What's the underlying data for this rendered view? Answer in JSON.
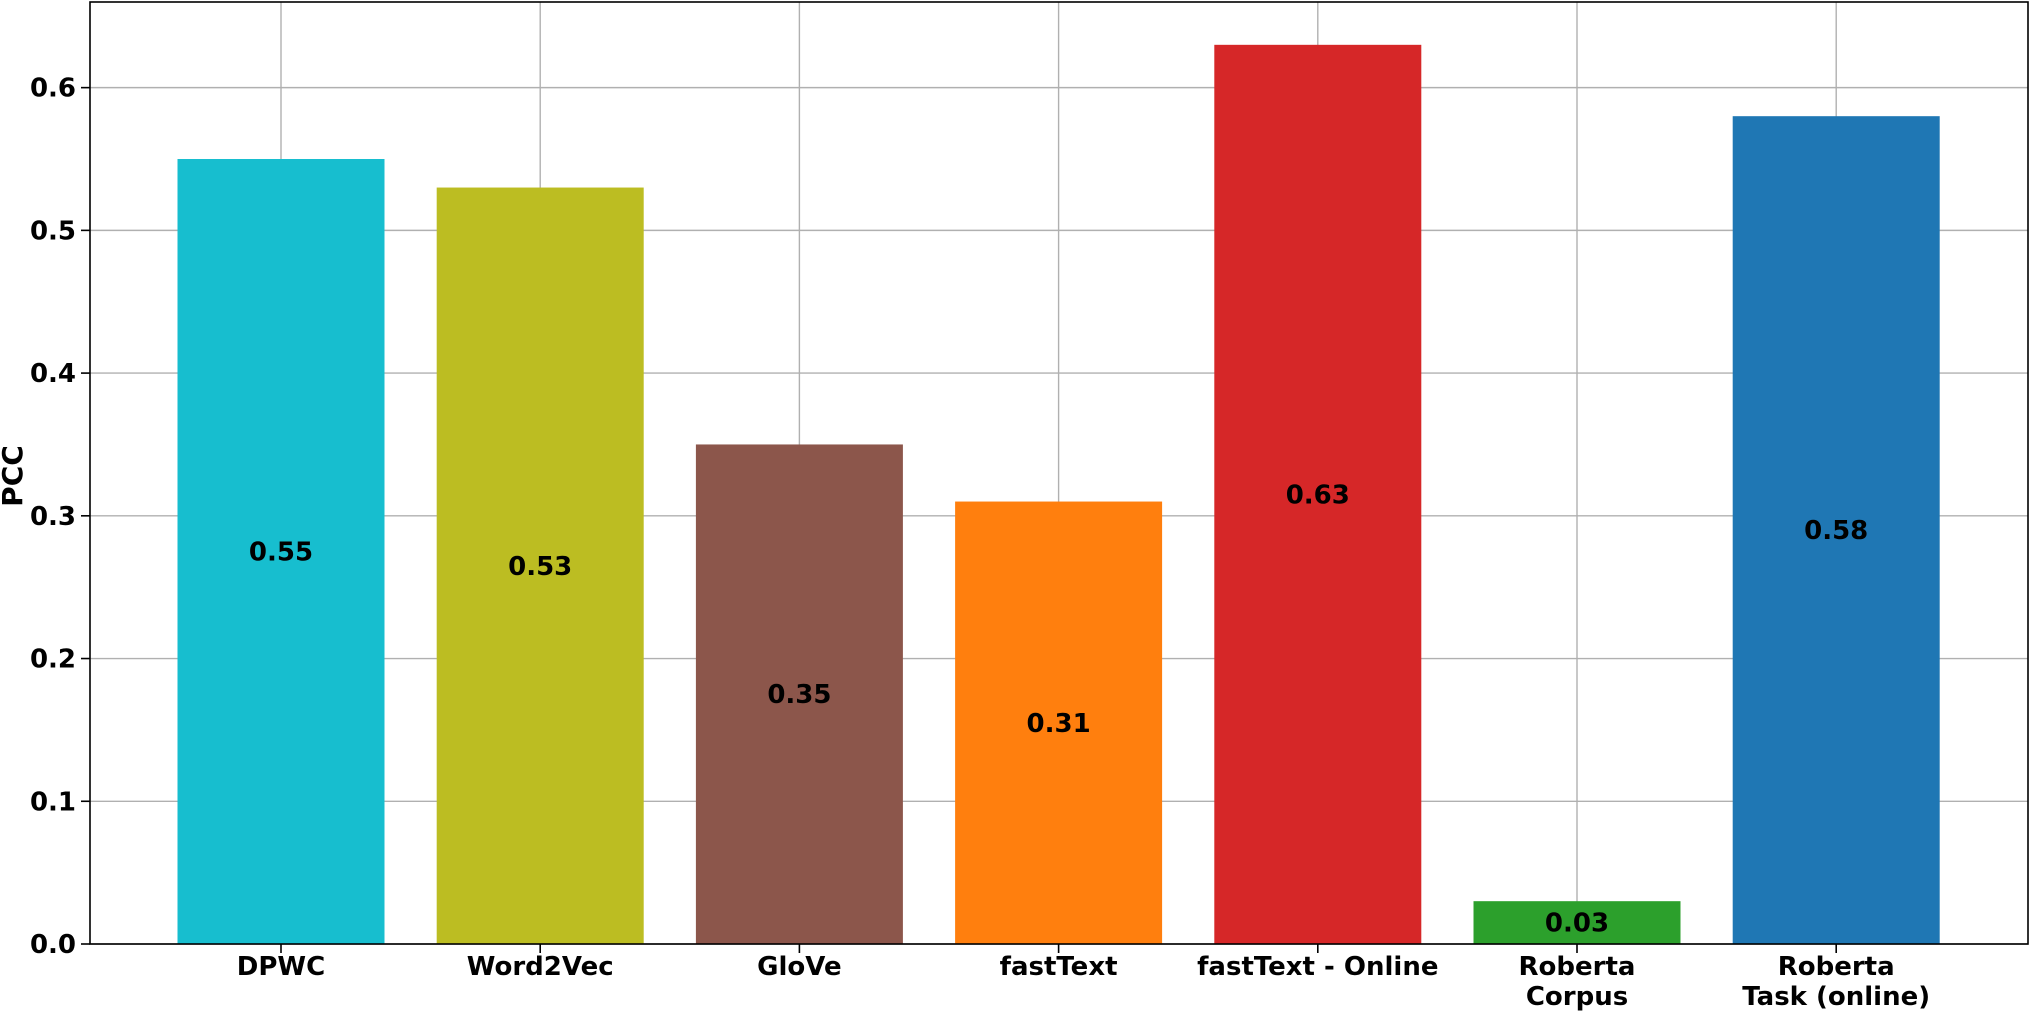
{
  "chart_data": {
    "type": "bar",
    "title": "",
    "xlabel": "",
    "ylabel": "PCC",
    "ylim": [
      0,
      0.66
    ],
    "yticks": [
      0.0,
      0.1,
      0.2,
      0.3,
      0.4,
      0.5,
      0.6
    ],
    "ytick_labels": [
      "0.0",
      "0.1",
      "0.2",
      "0.3",
      "0.4",
      "0.5",
      "0.6"
    ],
    "grid": true,
    "legend": "none",
    "categories": [
      [
        "DPWC"
      ],
      [
        "Word2Vec"
      ],
      [
        "GloVe"
      ],
      [
        "fastText"
      ],
      [
        "fastText - Online"
      ],
      [
        "Roberta",
        "Corpus"
      ],
      [
        "Roberta",
        "Task (online)"
      ]
    ],
    "values": [
      0.55,
      0.53,
      0.35,
      0.31,
      0.63,
      0.03,
      0.58
    ],
    "value_labels": [
      "0.55",
      "0.53",
      "0.35",
      "0.31",
      "0.63",
      "0.03",
      "0.58"
    ],
    "colors": [
      "#17becf",
      "#bcbd22",
      "#8c564b",
      "#ff7f0e",
      "#d62728",
      "#2ca02c",
      "#1f77b4"
    ],
    "grid_color": "#b0b0b0"
  }
}
